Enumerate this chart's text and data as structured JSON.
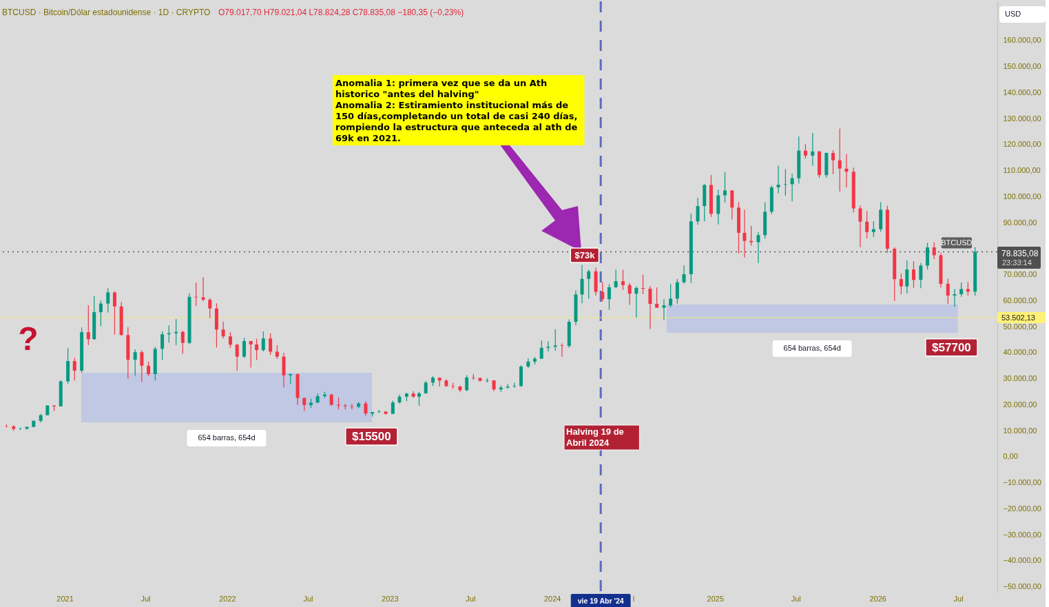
{
  "chart_data": {
    "type": "candlestick",
    "title": "BTCUSD · Bitcoin/Dólar estadounidense · 1D · CRYPTO",
    "subtitle": "O79.017,70 H79.021,04 L78.824,28 C78.835,08 −180,35 (−0,23%)",
    "ylabel": "USD",
    "colors": [
      "#f23645",
      "#f23645",
      "#089981",
      "#089981",
      "#089981",
      "#089981",
      "#089981",
      "#f23645",
      "#089981",
      "#089981",
      "#f23645",
      "#089981",
      "#f23645",
      "#089981",
      "#089981",
      "#089981",
      "#f23645",
      "#f23645",
      "#f23645",
      "#089981",
      "#f23645",
      "#f23645",
      "#089981",
      "#089981",
      "#089981",
      "#089981",
      "#f23645",
      "#089981",
      "#f23645",
      "#f23645",
      "#f23645",
      "#f23645",
      "#f23645",
      "#f23645",
      "#f23645",
      "#089981",
      "#f23645",
      "#f23645",
      "#089981",
      "#f23645",
      "#f23645",
      "#f23645",
      "#089981",
      "#f23645",
      "#f23645",
      "#089981",
      "#089981",
      "#089981",
      "#f23645",
      "#f23645",
      "#f23645",
      "#f23645",
      "#089981",
      "#f23645",
      "#089981",
      "#089981",
      "#f23645",
      "#089981",
      "#089981",
      "#089981",
      "#f23645",
      "#089981",
      "#089981",
      "#089981",
      "#f23645",
      "#f23645",
      "#f23645",
      "#f23645",
      "#089981",
      "#f23645",
      "#f23645",
      "#089981",
      "#f23645",
      "#089981",
      "#089981",
      "#089981",
      "#089981",
      "#089981",
      "#089981",
      "#089981",
      "#089981",
      "#089981",
      "#f23645",
      "#089981",
      "#089981",
      "#089981",
      "#089981",
      "#f23645",
      "#f23645",
      "#089981",
      "#089981",
      "#f23645",
      "#f23645",
      "#089981",
      "#f23645",
      "#f23645",
      "#f23645",
      "#089981",
      "#089981",
      "#089981",
      "#089981",
      "#089981",
      "#089981",
      "#089981",
      "#f23645",
      "#089981",
      "#089981",
      "#f23645",
      "#f23645",
      "#f23645",
      "#f23645",
      "#089981",
      "#089981",
      "#089981",
      "#089981",
      "#089981",
      "#089981",
      "#089981",
      "#f23645",
      "#089981",
      "#f23645",
      "#089981",
      "#f23645",
      "#f23645",
      "#f23645",
      "#f23645",
      "#f23645",
      "#f23645",
      "#089981",
      "#089981",
      "#f23645",
      "#f23645",
      "#f23645",
      "#089981",
      "#f23645",
      "#089981",
      "#089981",
      "#f23645",
      "#f23645",
      "#f23645",
      "#089981",
      "#089981",
      "#f23645",
      "#089981"
    ],
    "x": [
      "2020-08-23",
      "2020-09-08",
      "2020-09-23",
      "2020-10-08",
      "2020-10-23",
      "2020-11-08",
      "2020-11-23",
      "2020-12-08",
      "2020-12-23",
      "2021-01-08",
      "2021-01-23",
      "2021-02-08",
      "2021-02-23",
      "2021-03-08",
      "2021-03-23",
      "2021-04-08",
      "2021-04-23",
      "2021-05-08",
      "2021-05-23",
      "2021-06-08",
      "2021-06-23",
      "2021-07-08",
      "2021-07-23",
      "2021-08-08",
      "2021-08-23",
      "2021-09-08",
      "2021-09-23",
      "2021-10-08",
      "2021-10-23",
      "2021-11-08",
      "2021-11-23",
      "2021-12-08",
      "2021-12-23",
      "2022-01-08",
      "2022-01-23",
      "2022-02-08",
      "2022-02-23",
      "2022-03-08",
      "2022-03-23",
      "2022-04-08",
      "2022-04-23",
      "2022-05-08",
      "2022-05-23",
      "2022-06-08",
      "2022-06-23",
      "2022-07-08",
      "2022-07-23",
      "2022-08-08",
      "2022-08-23",
      "2022-09-08",
      "2022-09-23",
      "2022-10-08",
      "2022-10-23",
      "2022-11-08",
      "2022-11-23",
      "2022-12-08",
      "2022-12-23",
      "2023-01-08",
      "2023-01-23",
      "2023-02-08",
      "2023-02-23",
      "2023-03-08",
      "2023-03-23",
      "2023-04-08",
      "2023-04-23",
      "2023-05-08",
      "2023-05-23",
      "2023-06-08",
      "2023-06-23",
      "2023-07-08",
      "2023-07-23",
      "2023-08-08",
      "2023-08-23",
      "2023-09-08",
      "2023-09-23",
      "2023-10-08",
      "2023-10-23",
      "2023-11-08",
      "2023-11-23",
      "2023-12-08",
      "2023-12-23",
      "2024-01-08",
      "2024-01-23",
      "2024-02-08",
      "2024-02-23",
      "2024-03-08",
      "2024-03-23",
      "2024-04-08",
      "2024-04-23",
      "2024-05-08",
      "2024-05-23",
      "2024-06-08",
      "2024-06-23",
      "2024-07-08",
      "2024-07-23",
      "2024-08-08",
      "2024-08-23",
      "2024-09-08",
      "2024-09-23",
      "2024-10-08",
      "2024-10-23",
      "2024-11-08",
      "2024-11-23",
      "2024-12-08",
      "2024-12-23",
      "2025-01-08",
      "2025-01-23",
      "2025-02-08",
      "2025-02-23",
      "2025-03-08",
      "2025-03-23",
      "2025-04-08",
      "2025-04-23",
      "2025-05-08",
      "2025-05-23",
      "2025-06-08",
      "2025-06-23",
      "2025-07-08",
      "2025-07-23",
      "2025-08-08",
      "2025-08-23",
      "2025-09-08",
      "2025-09-23",
      "2025-10-08",
      "2025-10-23",
      "2025-11-08",
      "2025-11-23",
      "2025-12-08",
      "2025-12-23",
      "2026-01-08",
      "2026-01-23",
      "2026-02-08",
      "2026-02-23",
      "2026-03-08",
      "2026-03-23",
      "2026-04-08",
      "2026-04-23",
      "2026-05-08",
      "2026-05-23",
      "2026-06-08",
      "2026-06-23",
      "2026-07-08",
      "2026-07-23",
      "2026-08-08"
    ],
    "ohlc": [
      [
        11800,
        12400,
        11200,
        11700
      ],
      [
        11700,
        12100,
        10000,
        10700
      ],
      [
        10700,
        11200,
        10300,
        10800
      ],
      [
        10800,
        11600,
        10400,
        11500
      ],
      [
        11500,
        14100,
        11300,
        13800
      ],
      [
        13800,
        16500,
        13200,
        16000
      ],
      [
        16000,
        19800,
        15900,
        19700
      ],
      [
        19700,
        19900,
        17600,
        19400
      ],
      [
        19400,
        29300,
        19300,
        29000
      ],
      [
        29000,
        41900,
        28100,
        36800
      ],
      [
        36800,
        38000,
        29300,
        33100
      ],
      [
        33100,
        49700,
        32300,
        47900
      ],
      [
        47900,
        58300,
        43000,
        45200
      ],
      [
        45200,
        61700,
        45000,
        55600
      ],
      [
        55600,
        60000,
        50300,
        58900
      ],
      [
        58900,
        64800,
        55500,
        63200
      ],
      [
        63200,
        63600,
        47000,
        57800
      ],
      [
        57800,
        59500,
        46600,
        46800
      ],
      [
        46800,
        49800,
        30000,
        37300
      ],
      [
        37300,
        41300,
        31100,
        40200
      ],
      [
        40200,
        40900,
        28800,
        35000
      ],
      [
        35000,
        36600,
        31000,
        31800
      ],
      [
        31800,
        42300,
        29300,
        41500
      ],
      [
        41500,
        48200,
        37300,
        47100
      ],
      [
        47100,
        50500,
        43900,
        47500
      ],
      [
        47500,
        52900,
        43000,
        48000
      ],
      [
        48000,
        48500,
        39600,
        43800
      ],
      [
        43800,
        62900,
        43300,
        61500
      ],
      [
        61500,
        67000,
        58000,
        61300
      ],
      [
        61300,
        69000,
        59800,
        60400
      ],
      [
        60400,
        61000,
        53300,
        57000
      ],
      [
        57000,
        59000,
        42000,
        48900
      ],
      [
        48900,
        52000,
        45500,
        46300
      ],
      [
        46300,
        47900,
        41800,
        43100
      ],
      [
        43100,
        43500,
        33000,
        38500
      ],
      [
        38500,
        45800,
        38000,
        44500
      ],
      [
        44500,
        44500,
        34300,
        43200
      ],
      [
        43200,
        45400,
        37200,
        41000
      ],
      [
        41000,
        48200,
        40500,
        45500
      ],
      [
        45500,
        47400,
        39200,
        40400
      ],
      [
        40400,
        42900,
        37600,
        38500
      ],
      [
        38500,
        40000,
        26700,
        31300
      ],
      [
        31300,
        31900,
        28000,
        31800
      ],
      [
        31800,
        31900,
        20000,
        22600
      ],
      [
        22600,
        22800,
        17600,
        19900
      ],
      [
        19900,
        22400,
        18800,
        20800
      ],
      [
        20800,
        24300,
        20700,
        23300
      ],
      [
        23300,
        25000,
        22700,
        23900
      ],
      [
        23900,
        24200,
        19600,
        20000
      ],
      [
        20000,
        22800,
        18200,
        19700
      ],
      [
        19700,
        20400,
        18200,
        19400
      ],
      [
        19400,
        20400,
        18200,
        19200
      ],
      [
        19200,
        21000,
        18700,
        20500
      ],
      [
        20500,
        21400,
        15700,
        16600
      ],
      [
        16600,
        17200,
        15500,
        17200
      ],
      [
        17200,
        18000,
        16900,
        17400
      ],
      [
        17400,
        17400,
        16300,
        16500
      ],
      [
        16500,
        21600,
        16500,
        20900
      ],
      [
        20900,
        23900,
        20400,
        23100
      ],
      [
        23100,
        24600,
        21400,
        24300
      ],
      [
        24300,
        25200,
        22700,
        23100
      ],
      [
        23100,
        25000,
        19600,
        24400
      ],
      [
        24400,
        29200,
        24200,
        28500
      ],
      [
        28500,
        31000,
        27200,
        30400
      ],
      [
        30400,
        30500,
        27000,
        29300
      ],
      [
        29300,
        29800,
        26800,
        27200
      ],
      [
        27200,
        28400,
        26100,
        27000
      ],
      [
        27000,
        27400,
        24800,
        25600
      ],
      [
        25600,
        31400,
        25200,
        30500
      ],
      [
        30500,
        31800,
        29600,
        30300
      ],
      [
        30300,
        30400,
        28900,
        29200
      ],
      [
        29200,
        30200,
        28600,
        29400
      ],
      [
        29400,
        29400,
        25200,
        25900
      ],
      [
        25900,
        27400,
        24900,
        26600
      ],
      [
        26600,
        28000,
        26300,
        27000
      ],
      [
        27000,
        28500,
        26600,
        27200
      ],
      [
        27200,
        35200,
        26900,
        34700
      ],
      [
        34700,
        37900,
        34100,
        36600
      ],
      [
        36600,
        38400,
        35500,
        37700
      ],
      [
        37700,
        44700,
        37700,
        41900
      ],
      [
        41900,
        44400,
        40500,
        42300
      ],
      [
        42300,
        49000,
        40800,
        42800
      ],
      [
        42800,
        43600,
        38500,
        42600
      ],
      [
        42600,
        52800,
        42000,
        51900
      ],
      [
        51900,
        64000,
        50600,
        62400
      ],
      [
        62400,
        73800,
        59000,
        68400
      ],
      [
        68400,
        72000,
        60800,
        71300
      ],
      [
        71300,
        72700,
        62000,
        63400
      ],
      [
        63400,
        67200,
        59700,
        60600
      ],
      [
        60600,
        66400,
        56500,
        65200
      ],
      [
        65200,
        71900,
        64800,
        67500
      ],
      [
        67500,
        71900,
        64100,
        66000
      ],
      [
        66000,
        66800,
        58400,
        62700
      ],
      [
        62700,
        65500,
        53500,
        64900
      ],
      [
        64900,
        70000,
        62500,
        64600
      ],
      [
        64600,
        65600,
        49100,
        58800
      ],
      [
        58800,
        65100,
        57200,
        57300
      ],
      [
        57300,
        60600,
        52500,
        58200
      ],
      [
        58200,
        66500,
        57500,
        60800
      ],
      [
        60800,
        68400,
        58900,
        67100
      ],
      [
        67100,
        73600,
        66600,
        70200
      ],
      [
        70200,
        93500,
        66800,
        90500
      ],
      [
        90500,
        99600,
        89200,
        96400
      ],
      [
        96400,
        104800,
        90500,
        104500
      ],
      [
        104500,
        108300,
        92200,
        93400
      ],
      [
        93400,
        102700,
        89300,
        100500
      ],
      [
        100500,
        109400,
        97800,
        102400
      ],
      [
        102400,
        102500,
        91200,
        95800
      ],
      [
        95800,
        97900,
        78200,
        86100
      ],
      [
        86100,
        95000,
        76600,
        83000
      ],
      [
        83000,
        88800,
        81200,
        82500
      ],
      [
        82500,
        86400,
        74500,
        85200
      ],
      [
        85200,
        97900,
        83900,
        94200
      ],
      [
        94200,
        104300,
        93400,
        103600
      ],
      [
        103600,
        111900,
        101300,
        104600
      ],
      [
        104600,
        110600,
        100400,
        104800
      ],
      [
        104800,
        108900,
        98200,
        107100
      ],
      [
        107100,
        123200,
        105100,
        117700
      ],
      [
        117700,
        120200,
        114700,
        115800
      ],
      [
        115800,
        124500,
        111900,
        117400
      ],
      [
        117400,
        117600,
        107300,
        108300
      ],
      [
        108300,
        117000,
        107300,
        116800
      ],
      [
        116800,
        117900,
        108600,
        114000
      ],
      [
        114000,
        126200,
        102000,
        110800
      ],
      [
        110800,
        116400,
        103600,
        109600
      ],
      [
        109600,
        111200,
        94000,
        95500
      ],
      [
        95500,
        96600,
        80600,
        90400
      ],
      [
        90400,
        94500,
        84000,
        86400
      ],
      [
        86400,
        90600,
        84500,
        87500
      ],
      [
        87500,
        97900,
        86500,
        95000
      ],
      [
        95000,
        96500,
        78500,
        80000
      ],
      [
        80000,
        80500,
        59900,
        68300
      ],
      [
        68300,
        70500,
        62500,
        65500
      ],
      [
        65500,
        75500,
        62800,
        72000
      ],
      [
        72000,
        75200,
        65000,
        68000
      ],
      [
        68000,
        74500,
        64800,
        73500
      ],
      [
        73500,
        82300,
        72000,
        80500
      ],
      [
        80500,
        82500,
        76000,
        77500
      ],
      [
        77500,
        78500,
        65000,
        66500
      ],
      [
        66500,
        68500,
        58800,
        62000
      ],
      [
        62000,
        64500,
        57700,
        62500
      ],
      [
        62500,
        67000,
        61500,
        64500
      ],
      [
        64500,
        67200,
        62000,
        63500
      ],
      [
        63500,
        80600,
        62000,
        78835.08
      ]
    ],
    "xlim": [
      "2020-08-10",
      "2026-09-27"
    ],
    "ylim": [
      -52200,
      175100
    ],
    "xticks": [
      {
        "value": "2021-01-01",
        "label": "2021"
      },
      {
        "value": "2021-07-01",
        "label": "Jul"
      },
      {
        "value": "2022-01-01",
        "label": "2022"
      },
      {
        "value": "2022-07-01",
        "label": "Jul"
      },
      {
        "value": "2023-01-01",
        "label": "2023"
      },
      {
        "value": "2023-07-01",
        "label": "Jul"
      },
      {
        "value": "2024-01-01",
        "label": "2024"
      },
      {
        "value": "2024-07-01",
        "label": "l"
      },
      {
        "value": "2025-01-01",
        "label": "2025"
      },
      {
        "value": "2025-07-01",
        "label": "Jul"
      },
      {
        "value": "2026-01-01",
        "label": "2026"
      },
      {
        "value": "2026-07-01",
        "label": "Jul"
      }
    ],
    "yticks": [
      {
        "value": 160000,
        "label": "160.000,00"
      },
      {
        "value": 150000,
        "label": "150.000,00"
      },
      {
        "value": 140000,
        "label": "140.000,00"
      },
      {
        "value": 130000,
        "label": "130.000,00"
      },
      {
        "value": 120000,
        "label": "120.000,00"
      },
      {
        "value": 110000,
        "label": "110.000,00"
      },
      {
        "value": 100000,
        "label": "100.000,00"
      },
      {
        "value": 90000,
        "label": "90.000,00"
      },
      {
        "value": 70000,
        "label": "70.000,00"
      },
      {
        "value": 60000,
        "label": "60.000,00"
      },
      {
        "value": 50000,
        "label": "50.000,00"
      },
      {
        "value": 40000,
        "label": "40.000,00"
      },
      {
        "value": 30000,
        "label": "30.000,00"
      },
      {
        "value": 20000,
        "label": "20.000,00"
      },
      {
        "value": 10000,
        "label": "10.000,00"
      },
      {
        "value": 0,
        "label": "0,00"
      },
      {
        "value": -10000,
        "label": "−10.000,00"
      },
      {
        "value": -20000,
        "label": "−20.000,00"
      },
      {
        "value": -30000,
        "label": "−30.000,00"
      },
      {
        "value": -40000,
        "label": "−40.000,00"
      },
      {
        "value": -50000,
        "label": "−50.000,00"
      }
    ],
    "grid": false,
    "ref_lines": [
      {
        "axis": "x",
        "value": "2024-04-19",
        "label": "vie 19 Abr '24",
        "line_style": "dashed",
        "color": "#5b6cbf"
      },
      {
        "axis": "y",
        "value": 78835.08,
        "label": "BTCUSD",
        "line_style": "dotted",
        "color": "#555555"
      },
      {
        "axis": "y",
        "value": 53502.13,
        "label": "53.502,13",
        "line_style": "solid",
        "color": "#f3e77e"
      }
    ],
    "bands": [
      {
        "axis": "x",
        "from": "2021-02-07",
        "to": "2022-11-22",
        "label": "654 barras, 654d",
        "color": "#c0c8e3"
      },
      {
        "axis": "x",
        "from": "2024-09-14",
        "to": "2026-06-30",
        "label": "654 barras, 654d",
        "color": "#c0c8e3"
      }
    ],
    "annotations": [
      "Anomalia 1:  primera vez que se da un Ath historico \"antes del halving\"\nAnomalia 2: Estiramiento institucional más de 150 días,completando un total de casi 240 días, rompiendo la estructura que anteceda al ath de 69k en 2021.",
      {
        "text": "$73k",
        "x": "2024-03-14",
        "y": 73000
      },
      {
        "text": "$15500",
        "x": "2022-11-21",
        "y": 15500
      },
      {
        "text": "$57700",
        "x": "2026-06-16",
        "y": 57700
      },
      "Halving 19 de Abril 2024",
      "?",
      "78.835,08",
      "23:33:14"
    ]
  }
}
